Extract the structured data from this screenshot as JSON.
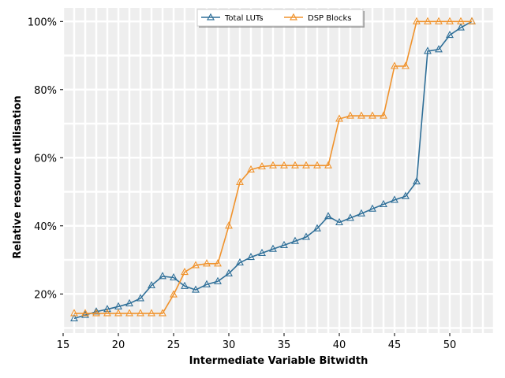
{
  "chart_data": {
    "type": "line",
    "xlabel": "Intermediate Variable Bitwidth",
    "ylabel": "Relative resource utilisation",
    "xlim": [
      15,
      54
    ],
    "ylim": [
      8.5,
      104
    ],
    "x_ticks": [
      15,
      20,
      25,
      30,
      35,
      40,
      45,
      50
    ],
    "y_ticks": [
      20,
      40,
      60,
      80,
      100
    ],
    "y_tick_labels": [
      "20%",
      "40%",
      "60%",
      "80%",
      "100%"
    ],
    "grid": true,
    "legend_position": "top-center",
    "x": [
      16,
      17,
      18,
      19,
      20,
      21,
      22,
      23,
      24,
      25,
      26,
      27,
      28,
      29,
      30,
      31,
      32,
      33,
      34,
      35,
      36,
      37,
      38,
      39,
      40,
      41,
      42,
      43,
      44,
      45,
      46,
      47,
      48,
      49,
      50,
      51,
      52
    ],
    "series": [
      {
        "name": "Total LUTs",
        "color": "#2f6f98",
        "marker": "triangle",
        "values": [
          12.8,
          13.8,
          14.8,
          15.5,
          16.3,
          17.2,
          18.7,
          22.5,
          25.2,
          24.8,
          22.3,
          21.2,
          22.8,
          23.7,
          26.0,
          29.2,
          30.8,
          32.0,
          33.2,
          34.3,
          35.5,
          36.7,
          39.2,
          42.8,
          41.0,
          42.3,
          43.6,
          45.0,
          46.3,
          47.6,
          48.7,
          53.0,
          91.3,
          91.8,
          96.0,
          98.2,
          100.0
        ]
      },
      {
        "name": "DSP Blocks",
        "color": "#f0922b",
        "marker": "triangle",
        "values": [
          14.3,
          14.3,
          14.3,
          14.3,
          14.3,
          14.3,
          14.3,
          14.3,
          14.3,
          19.8,
          26.4,
          28.4,
          28.9,
          28.9,
          40.0,
          52.8,
          56.5,
          57.4,
          57.7,
          57.7,
          57.7,
          57.7,
          57.7,
          57.7,
          71.4,
          72.3,
          72.3,
          72.3,
          72.3,
          86.9,
          86.9,
          100.0,
          100.0,
          100.0,
          100.0,
          100.0,
          100.0
        ]
      }
    ]
  }
}
